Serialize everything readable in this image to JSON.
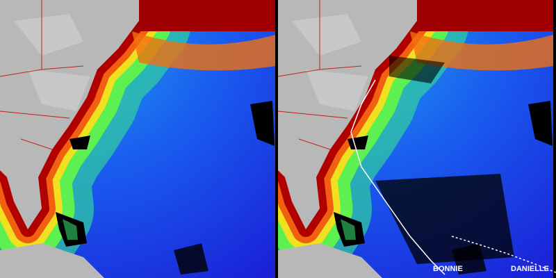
{
  "storm_labels": [
    "BONNIE",
    "DANIELLE"
  ]
}
